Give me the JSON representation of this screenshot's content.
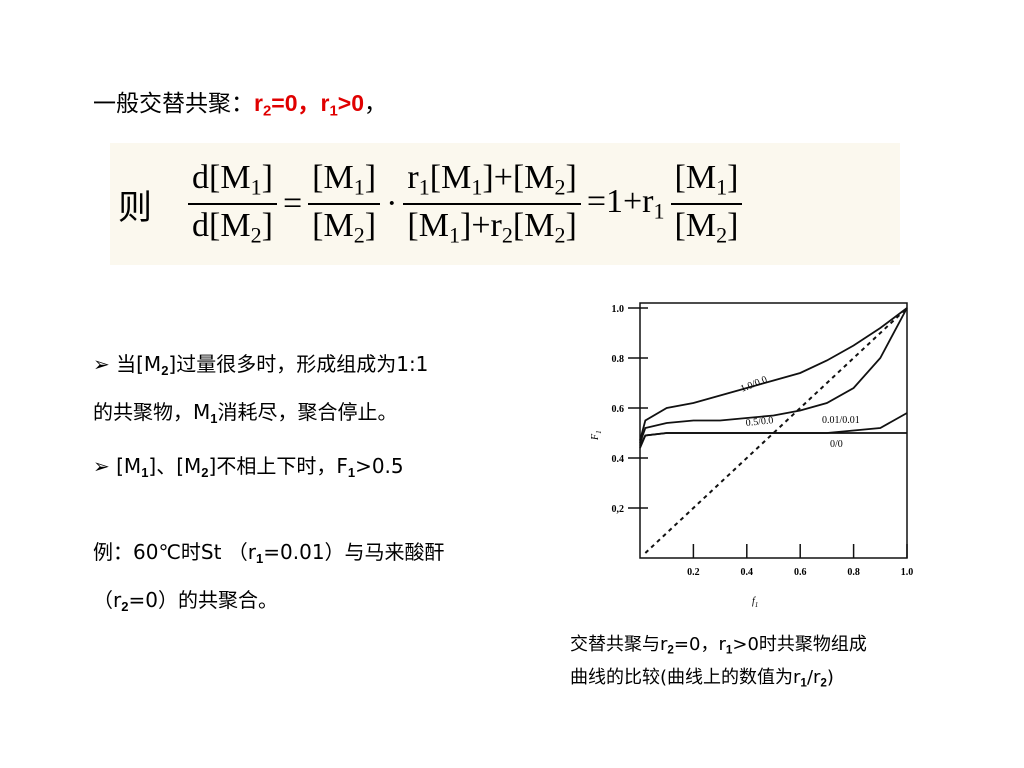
{
  "heading": {
    "lead": "一般交替共聚：",
    "highlight": [
      "r",
      "2",
      "=0，r",
      "1",
      ">0"
    ],
    "tail": "，"
  },
  "equation": {
    "prefix": "则",
    "lhs": {
      "num": [
        "d[M",
        "1",
        "]"
      ],
      "den": [
        "d[M",
        "2",
        "]"
      ]
    },
    "eq1": "=",
    "f1": {
      "num": [
        "[M",
        "1",
        "]"
      ],
      "den": [
        "[M",
        "2",
        "]"
      ]
    },
    "dot": "·",
    "f2": {
      "num": [
        "r",
        "1",
        "[M",
        "1",
        "]+[M",
        "2",
        "]"
      ],
      "den": [
        "[M",
        "1",
        "]+r",
        "2",
        "[M",
        "2",
        "]"
      ]
    },
    "rhs": [
      "=1+r",
      "1"
    ],
    "f3": {
      "num": [
        "[M",
        "1",
        "]"
      ],
      "den": [
        "[M",
        "2",
        "]"
      ]
    }
  },
  "bullets": [
    {
      "lines": [
        [
          "当[M",
          "2",
          "]过量很多时，形成组成为1:1"
        ],
        [
          "的共聚物，M",
          "1",
          "消耗尽，聚合停止。"
        ]
      ]
    },
    {
      "lines": [
        [
          "[M",
          "1",
          "]、[M",
          "2",
          "]不相上下时，F",
          "1",
          ">0.5"
        ]
      ]
    }
  ],
  "example": {
    "lines": [
      [
        "例：60℃时St （r",
        "1",
        "=0.01）与马来酸酐"
      ],
      [
        "（r",
        "2",
        "=0）的共聚合。"
      ]
    ]
  },
  "caption": {
    "lines": [
      [
        "交替共聚与r",
        "2",
        "=0，r",
        "1",
        ">0时共聚物组成"
      ],
      [
        "曲线的比较(曲线上的数值为r",
        "1",
        "/r",
        "2",
        ")"
      ]
    ]
  },
  "chart_data": {
    "type": "line",
    "xlabel": [
      "f",
      "1"
    ],
    "ylabel": [
      "F",
      "1"
    ],
    "xlim": [
      0,
      1
    ],
    "ylim": [
      0,
      1.02
    ],
    "xticks": [
      0.2,
      0.4,
      0.6,
      0.8,
      {
        "value": 1,
        "label": "1.0"
      }
    ],
    "yticks": [
      {
        "value": 0.2,
        "label": "0,2"
      },
      0.4,
      0.6,
      0.8,
      {
        "value": 1,
        "label": "1.0"
      }
    ],
    "x": [
      0,
      0.02,
      0.1,
      0.2,
      0.3,
      0.4,
      0.5,
      0.6,
      0.7,
      0.8,
      0.9,
      1
    ],
    "color": "#111111",
    "series": [
      {
        "name": "1.0/0.0",
        "values": [
          0.47,
          0.55,
          0.6,
          0.62,
          0.65,
          0.68,
          0.71,
          0.74,
          0.79,
          0.85,
          0.92,
          1
        ]
      },
      {
        "name": "0.5/0.0",
        "values": [
          0.46,
          0.52,
          0.54,
          0.55,
          0.55,
          0.56,
          0.57,
          0.59,
          0.62,
          0.68,
          0.8,
          1
        ]
      },
      {
        "name": "0.01/0.01",
        "values": [
          0.44,
          0.49,
          0.5,
          0.5,
          0.5,
          0.5,
          0.5,
          0.5,
          0.5,
          0.51,
          0.52,
          0.58
        ]
      },
      {
        "name": "0/0",
        "values": [
          0.45,
          0.49,
          0.5,
          0.5,
          0.5,
          0.5,
          0.5,
          0.5,
          0.5,
          0.5,
          0.5,
          0.5
        ]
      }
    ],
    "diagonal": {
      "x": [
        0.02,
        1
      ],
      "values": [
        0.02,
        1
      ]
    }
  }
}
